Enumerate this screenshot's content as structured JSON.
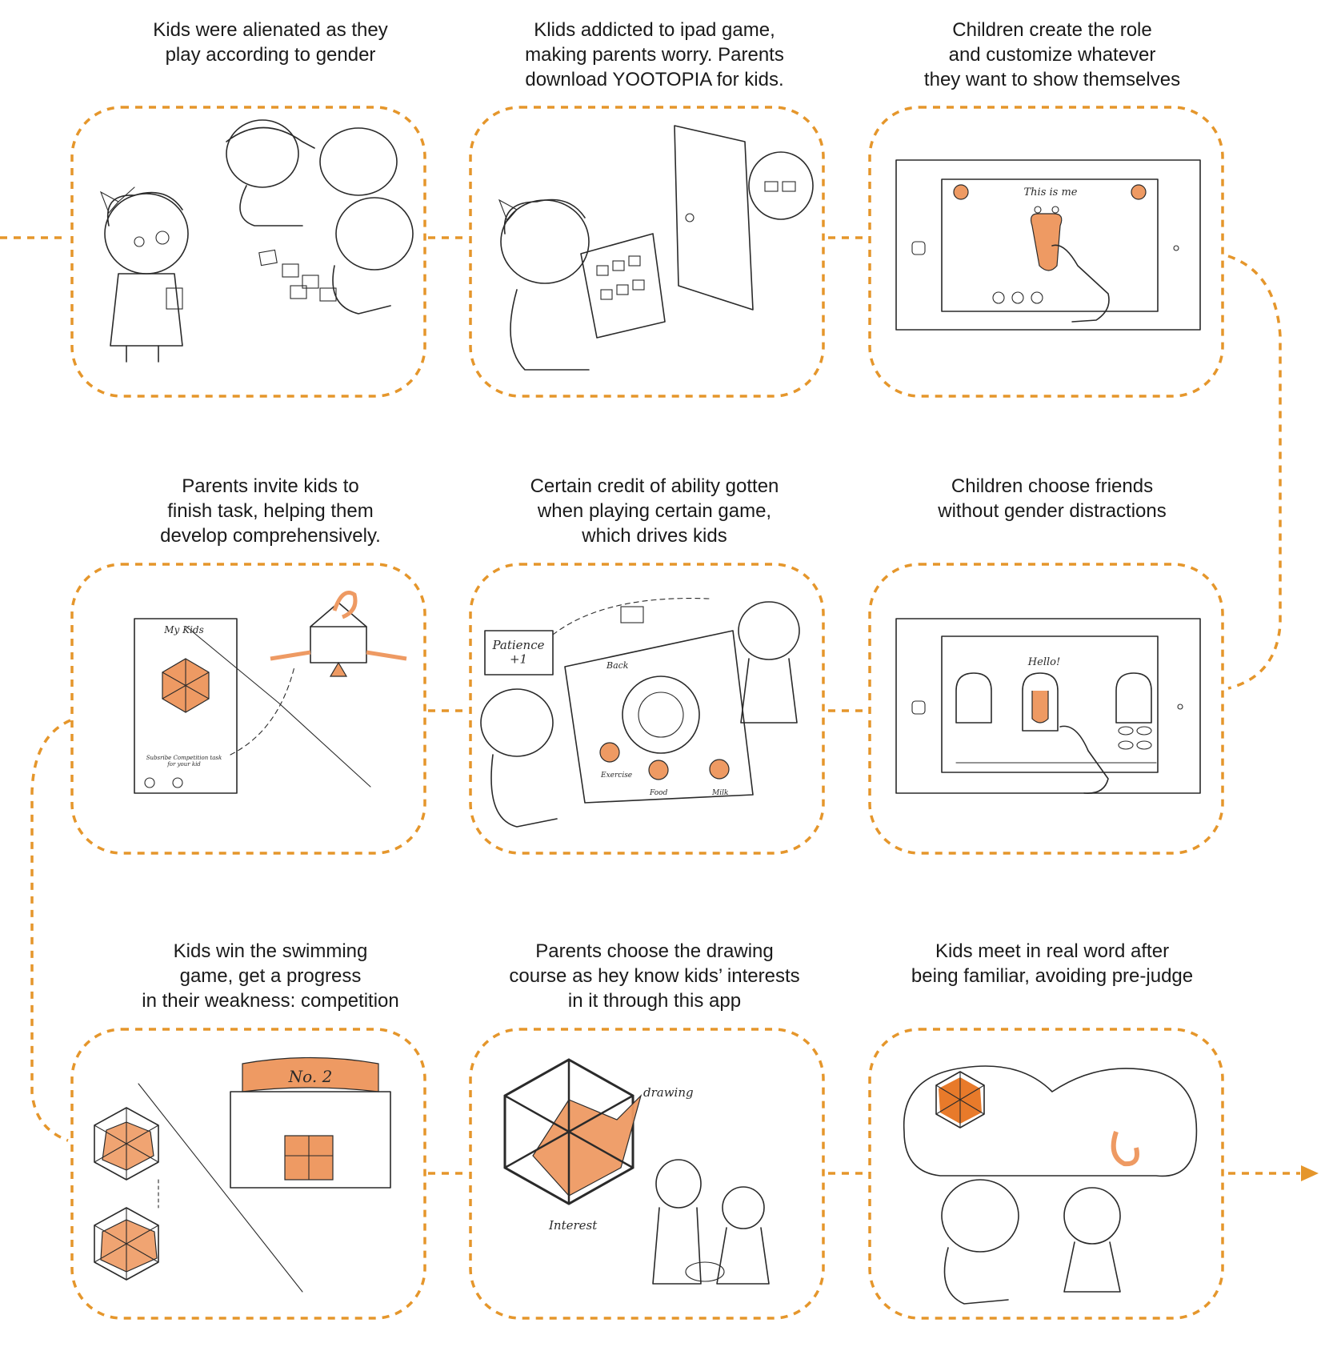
{
  "theme": {
    "accent": "#e5962b",
    "sketch_fill": "#ee9a63",
    "ink": "#2a2a2a"
  },
  "steps": [
    {
      "caption": "Kids were alienated as they\nplay according to gender"
    },
    {
      "caption": "Klids addicted to ipad game,\nmaking parents worry. Parents\ndownload YOOTOPIA for kids."
    },
    {
      "caption": "Children create the role\nand customize whatever\nthey want to show themselves",
      "screen_text": "This is me"
    },
    {
      "caption": "Parents invite kids to\nfinish task, helping them\ndevelop comprehensively.",
      "screen_title": "My Kids",
      "screen_link": "Subsribe Competition task\nfor your kid"
    },
    {
      "caption": "Certain credit of ability gotten\nwhen playing certain game,\nwhich drives kids",
      "bubble": "Patience\n+1",
      "back": "Back",
      "menu": [
        "Exercise",
        "Food",
        "Milk"
      ]
    },
    {
      "caption": "Children choose friends\nwithout gender distractions",
      "screen_text": "Hello!"
    },
    {
      "caption": "Kids win the swimming\ngame, get a progress\nin their weakness: competition",
      "banner": "No. 2"
    },
    {
      "caption": "Parents choose the  drawing\ncourse as hey know kids’ interests\nin it through this app",
      "label_top": "drawing",
      "label_bottom": "Interest"
    },
    {
      "caption": "Kids meet in real word after\nbeing familiar, avoiding pre-judge"
    }
  ]
}
